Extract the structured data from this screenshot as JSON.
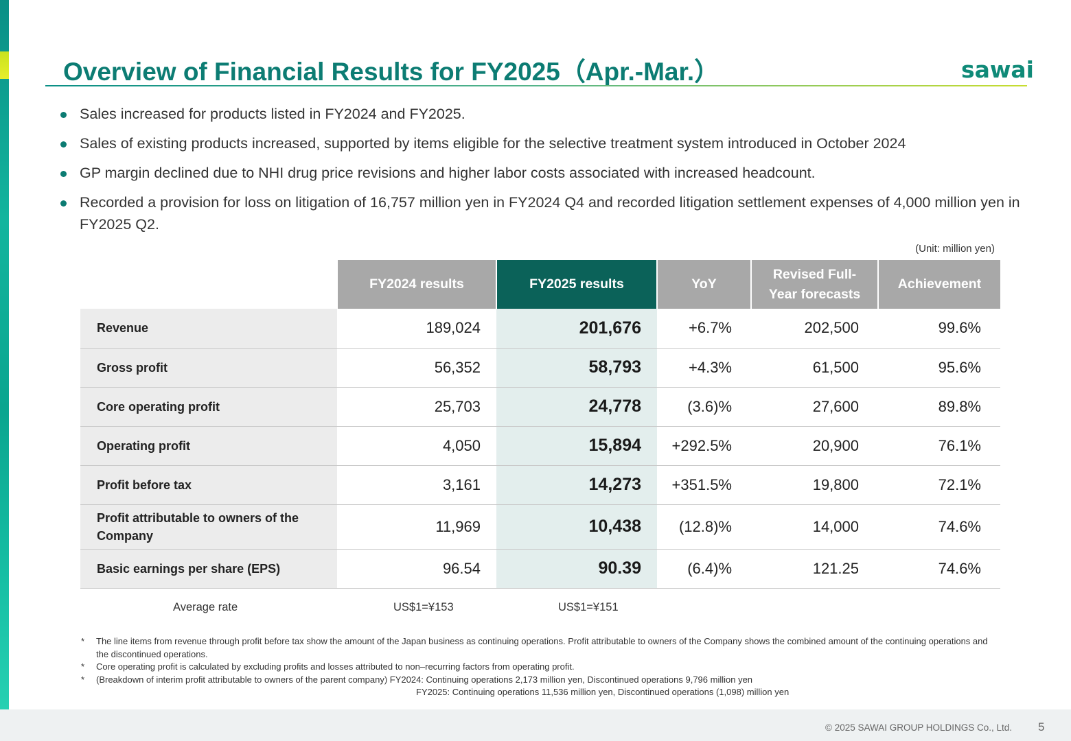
{
  "header": {
    "title": "Overview of Financial Results for FY2025（Apr.-Mar.）",
    "logo": "sawai"
  },
  "bullets": [
    "Sales increased for products listed in FY2024 and FY2025.",
    "Sales of existing products increased, supported by items eligible for the selective treatment system introduced in October 2024",
    "GP margin declined due to NHI drug price revisions and higher labor costs associated with increased headcount.",
    "Recorded a provision for loss on litigation of 16,757 million yen in FY2024 Q4 and recorded litigation settlement expenses of 4,000 million yen in FY2025 Q2."
  ],
  "unit": "(Unit: million yen)",
  "table": {
    "headers": {
      "fy2024": "FY2024 results",
      "fy2025": "FY2025 results",
      "yoy": "YoY",
      "forecast_line1": "Revised Full-",
      "forecast_line2": "Year forecasts",
      "achievement": "Achievement"
    },
    "rows": [
      {
        "label": "Revenue",
        "fy2024": "189,024",
        "fy2025": "201,676",
        "yoy": "+6.7%",
        "forecast": "202,500",
        "achievement": "99.6%"
      },
      {
        "label": "Gross profit",
        "fy2024": "56,352",
        "fy2025": "58,793",
        "yoy": "+4.3%",
        "forecast": "61,500",
        "achievement": "95.6%"
      },
      {
        "label": "Core operating profit",
        "fy2024": "25,703",
        "fy2025": "24,778",
        "yoy": "(3.6)%",
        "forecast": "27,600",
        "achievement": "89.8%"
      },
      {
        "label": "Operating profit",
        "fy2024": "4,050",
        "fy2025": "15,894",
        "yoy": "+292.5%",
        "forecast": "20,900",
        "achievement": "76.1%"
      },
      {
        "label": "Profit before tax",
        "fy2024": "3,161",
        "fy2025": "14,273",
        "yoy": "+351.5%",
        "forecast": "19,800",
        "achievement": "72.1%"
      },
      {
        "label": "Profit attributable to owners of the Company",
        "fy2024": "11,969",
        "fy2025": "10,438",
        "yoy": "(12.8)%",
        "forecast": "14,000",
        "achievement": "74.6%"
      },
      {
        "label": "Basic earnings per share (EPS)",
        "fy2024": "96.54",
        "fy2025": "90.39",
        "yoy": "(6.4)%",
        "forecast": "121.25",
        "achievement": "74.6%"
      }
    ]
  },
  "average_rate": {
    "label": "Average rate",
    "fy2024": "US$1=¥153",
    "fy2025": "US$1=¥151"
  },
  "notes": {
    "star": "*",
    "note1": "The line items from revenue through profit before tax show the amount of the Japan business as continuing operations. Profit attributable to owners of the Company shows the combined amount of the continuing operations and the discontinued operations.",
    "note2": "Core operating profit is calculated by excluding profits and losses attributed to non–recurring factors from operating profit.",
    "note3": "(Breakdown of interim profit attributable to owners of the parent company)  FY2024: Continuing operations 2,173 million yen, Discontinued operations 9,796 million yen",
    "note3_sub": "FY2025: Continuing operations 11,536 million yen, Discontinued operations (1,098) million yen"
  },
  "footer": {
    "copyright": "© 2025 SAWAI GROUP HOLDINGS Co., Ltd.",
    "page": "5"
  },
  "colors": {
    "brand_teal": "#0c7c73",
    "header_dark": "#0b6259",
    "header_gray": "#a8a8a8",
    "accent_lime": "#c8dd30"
  }
}
